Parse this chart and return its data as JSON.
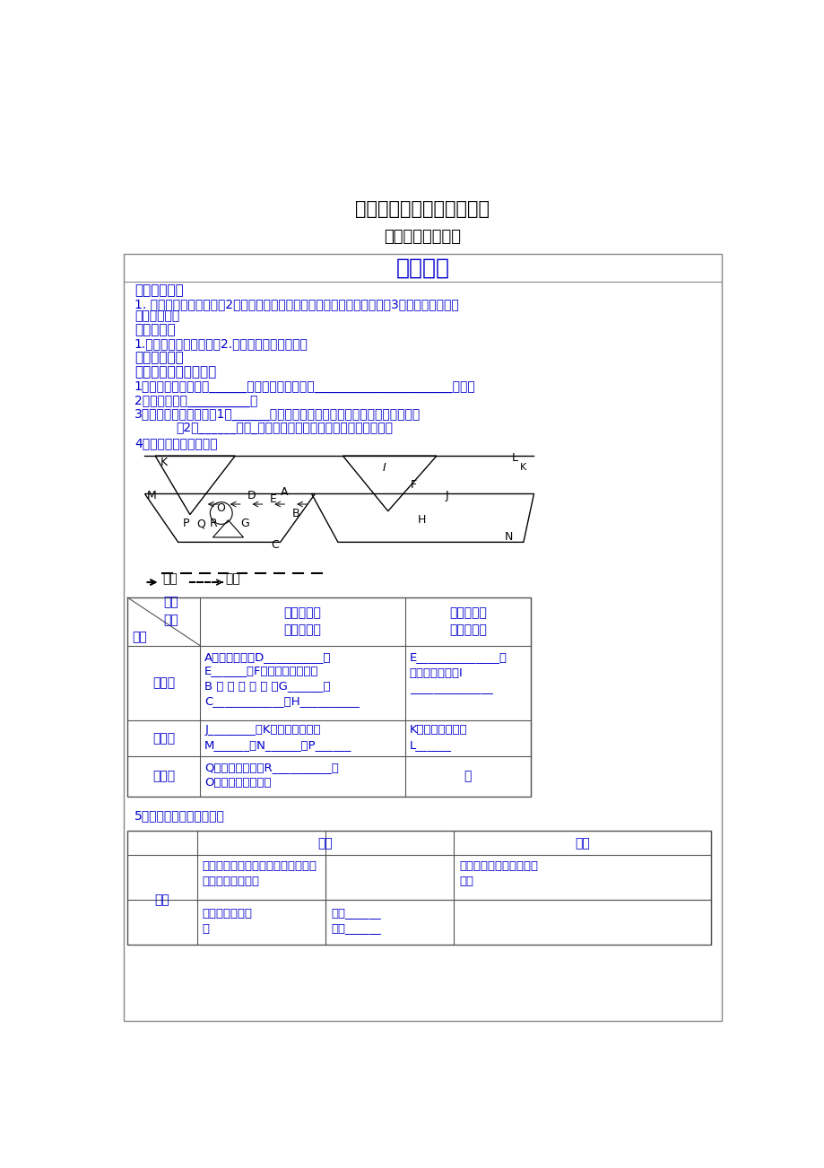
{
  "bg_color": "#ffffff",
  "title1": "水圈与水循环（第２课时）",
  "title2": "洋流及其地理意义",
  "box_title": "学习内容",
  "text_color": "#0000cc",
  "black_color": "#000000"
}
